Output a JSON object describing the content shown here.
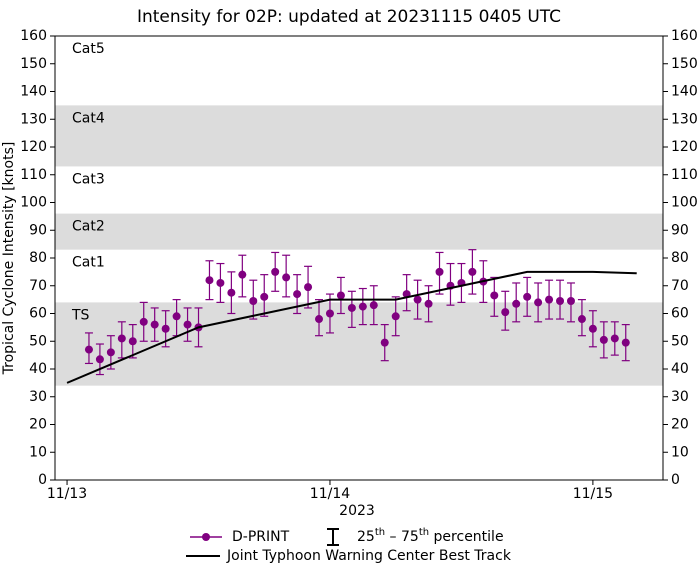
{
  "chart_data": {
    "type": "errorbar",
    "title": "Intensity for 02P: updated at 20231115 0405 UTC",
    "ylabel": "Tropical Cyclone Intensity [knots]",
    "xlabel": "2023",
    "xlim": [
      -1.1,
      54.4
    ],
    "xticks": [
      {
        "value": 0,
        "label": "11/13"
      },
      {
        "value": 24,
        "label": "11/14"
      },
      {
        "value": 48,
        "label": "11/15"
      }
    ],
    "ylim": [
      0,
      160
    ],
    "yticks": [
      0,
      10,
      20,
      30,
      40,
      50,
      60,
      70,
      80,
      90,
      100,
      110,
      120,
      130,
      140,
      150,
      160
    ],
    "bands": [
      {
        "label": "TS",
        "range": [
          34,
          64
        ],
        "shaded": true
      },
      {
        "label": "Cat1",
        "range": [
          64,
          83
        ],
        "shaded": false
      },
      {
        "label": "Cat2",
        "range": [
          83,
          96
        ],
        "shaded": true
      },
      {
        "label": "Cat3",
        "range": [
          96,
          113
        ],
        "shaded": false
      },
      {
        "label": "Cat4",
        "range": [
          113,
          135
        ],
        "shaded": true
      },
      {
        "label": "Cat5",
        "range": [
          135,
          160
        ],
        "shaded": false
      }
    ],
    "band_color": "#dcdcdc",
    "series": [
      {
        "name": "D-PRINT",
        "color": "#800080",
        "x": [
          2,
          3,
          4,
          5,
          6,
          7,
          8,
          9,
          10,
          11,
          12,
          13,
          14,
          15,
          16,
          17,
          18,
          19,
          20,
          21,
          22,
          23,
          24,
          25,
          26,
          27,
          28,
          29,
          30,
          31,
          32,
          33,
          34,
          35,
          36,
          37,
          38,
          39,
          40,
          41,
          42,
          43,
          44,
          45,
          46,
          47,
          48,
          49,
          50,
          51
        ],
        "values": [
          47,
          43.5,
          46,
          51,
          50,
          57,
          56,
          54.5,
          59,
          56,
          55,
          72,
          71,
          67.5,
          74,
          64.5,
          66,
          75,
          73,
          67,
          69.5,
          58,
          60,
          66.5,
          62,
          62.5,
          63,
          49.5,
          59,
          67,
          65,
          63.5,
          75,
          70,
          71,
          75,
          71.5,
          66.5,
          60.5,
          63.5,
          66,
          64,
          65,
          64.5,
          64.5,
          58,
          54.5,
          50.5,
          51,
          49.5
        ],
        "p25": [
          42,
          38,
          40,
          44,
          44,
          50,
          50,
          48,
          52,
          50,
          48,
          65,
          64,
          60,
          66,
          58,
          59,
          68,
          66,
          60,
          62,
          52,
          53,
          60,
          55,
          56,
          56,
          43,
          52,
          61,
          58,
          57,
          67,
          63,
          64,
          67,
          64,
          59,
          54,
          57,
          59,
          57,
          58,
          58,
          57,
          52,
          48,
          44,
          45,
          43
        ],
        "p75": [
          53,
          49,
          52,
          57,
          56,
          64,
          62,
          61,
          65,
          62,
          62,
          79,
          78,
          75,
          81,
          72,
          74,
          82,
          81,
          74,
          77,
          65,
          67,
          73,
          68,
          69,
          70,
          56,
          66,
          74,
          72,
          70,
          82,
          78,
          78,
          83,
          79,
          73,
          68,
          71,
          73,
          71,
          72,
          72,
          71,
          65,
          61,
          57,
          57,
          56
        ]
      },
      {
        "name": "Joint Typhoon Warning Center Best Track",
        "color": "#000000",
        "x": [
          0,
          6,
          12,
          18,
          24,
          30,
          36,
          42,
          48,
          52
        ],
        "values": [
          35,
          45,
          55,
          60,
          65,
          65,
          70,
          75,
          75,
          74.5
        ]
      }
    ],
    "percentile_legend": [
      "25",
      "th",
      "–",
      "75",
      "th",
      "percentile"
    ]
  }
}
